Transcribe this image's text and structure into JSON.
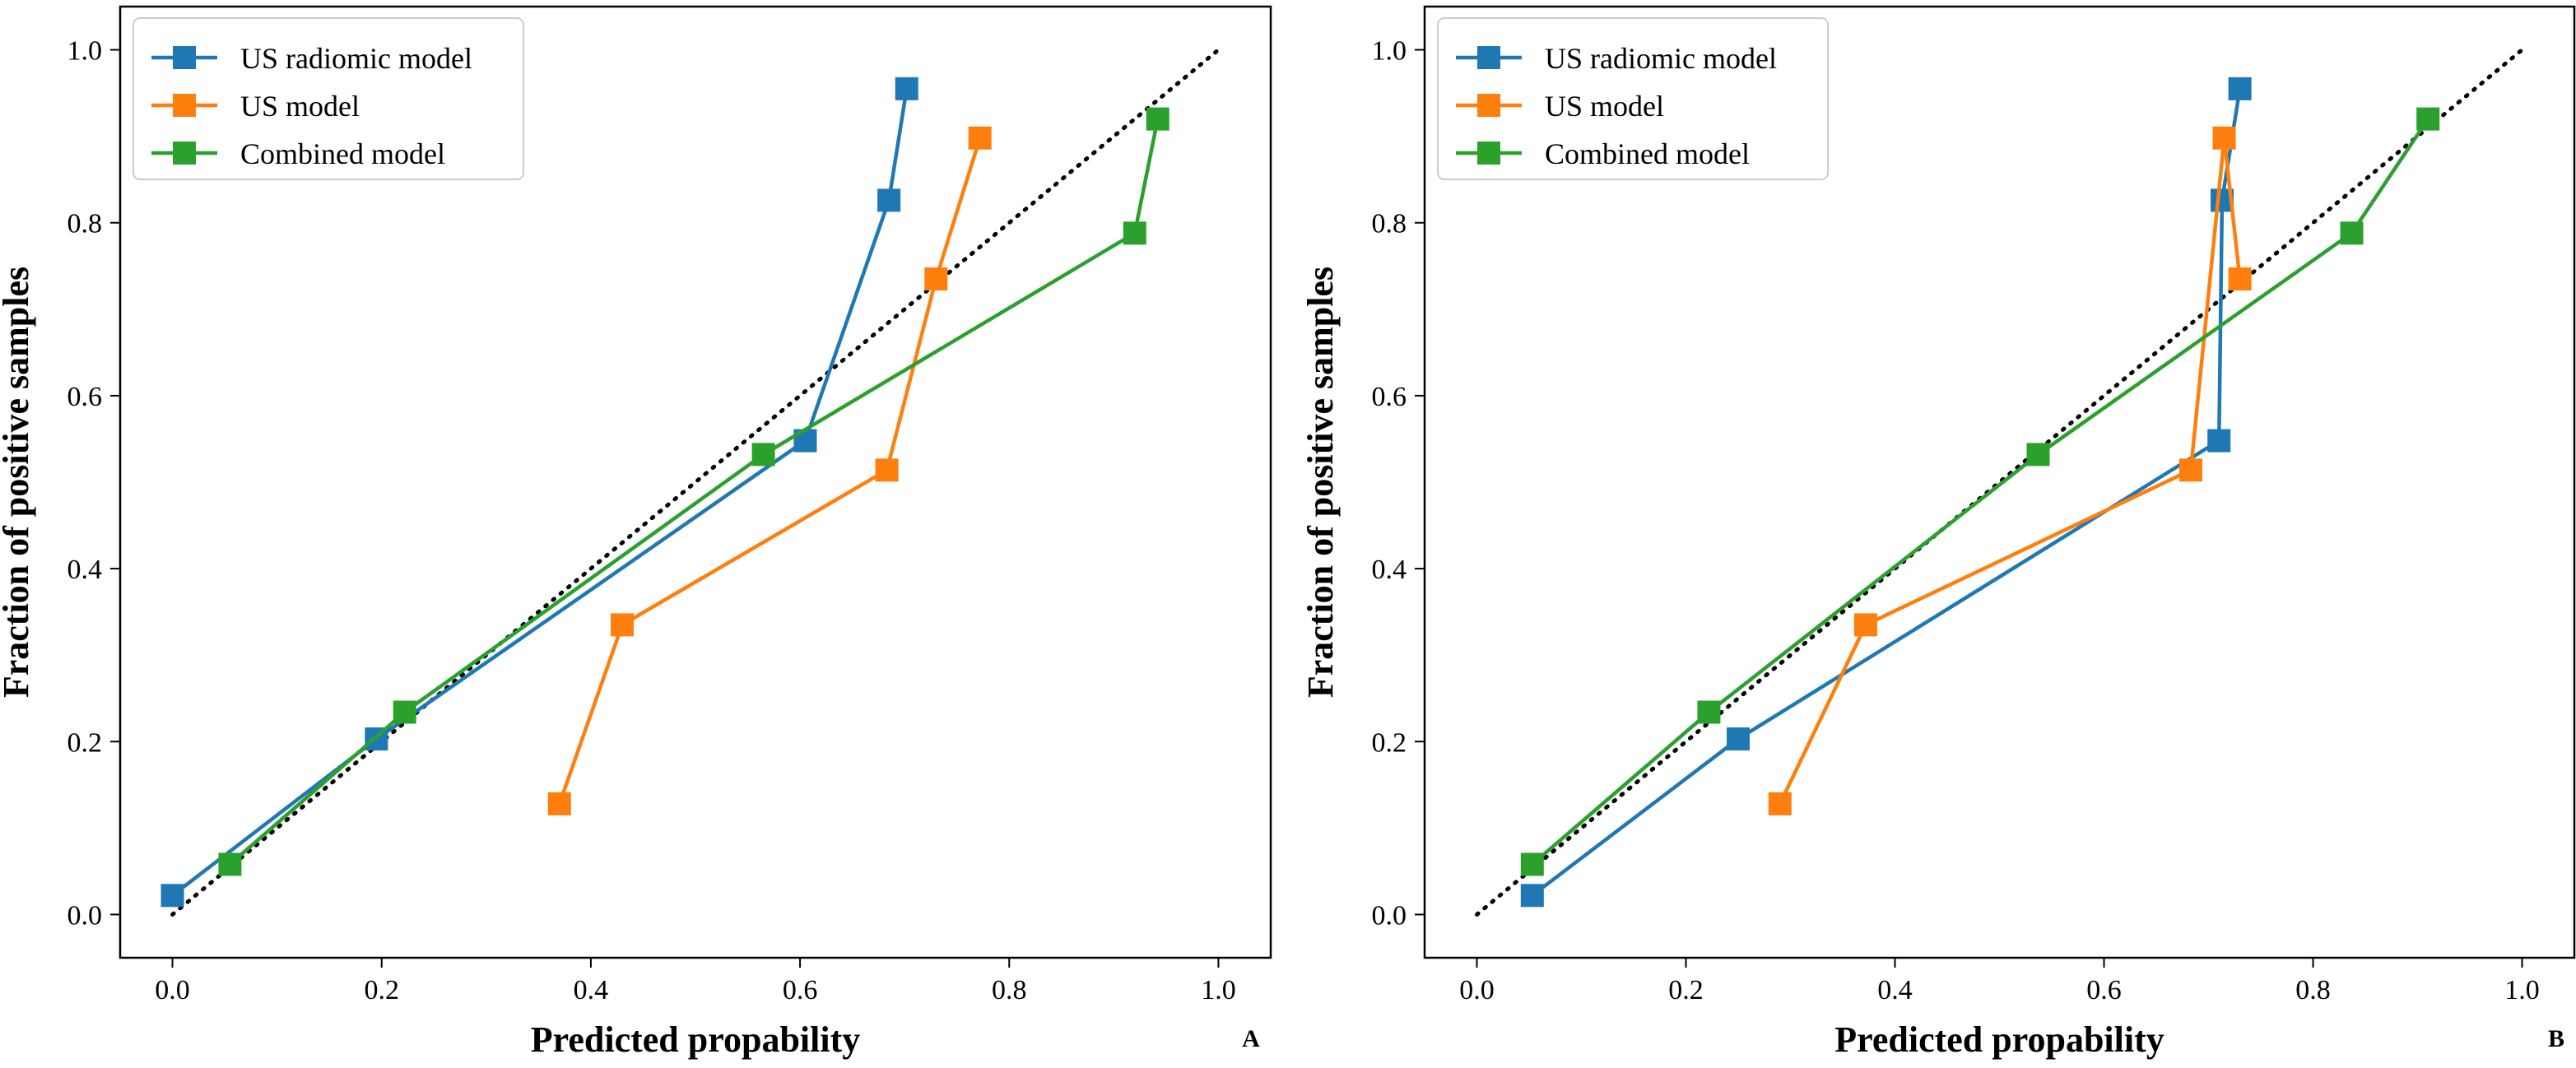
{
  "chart_data": [
    {
      "type": "line",
      "panel_label": "A",
      "xlabel": "Predicted propability",
      "ylabel": "Fraction of positive samples",
      "xlim": [
        -0.05,
        1.05
      ],
      "ylim": [
        -0.05,
        1.05
      ],
      "xticks": [
        "0.0",
        "0.2",
        "0.4",
        "0.6",
        "0.8",
        "1.0"
      ],
      "yticks": [
        "0.0",
        "0.2",
        "0.4",
        "0.6",
        "0.8",
        "1.0"
      ],
      "legend_position": "top-left",
      "reference_line": {
        "style": "dotted",
        "color": "#000000",
        "points": [
          [
            0,
            0
          ],
          [
            1,
            1
          ]
        ]
      },
      "series": [
        {
          "name": "US radiomic model",
          "color": "#1f77b4",
          "marker": "square",
          "x": [
            0.0,
            0.195,
            0.605,
            0.685,
            0.702
          ],
          "y": [
            0.022,
            0.203,
            0.548,
            0.826,
            0.955
          ]
        },
        {
          "name": "US model",
          "color": "#ff7f0e",
          "marker": "square",
          "x": [
            0.37,
            0.43,
            0.683,
            0.73,
            0.772
          ],
          "y": [
            0.128,
            0.335,
            0.514,
            0.735,
            0.898
          ]
        },
        {
          "name": "Combined model",
          "color": "#2ca02c",
          "marker": "square",
          "x": [
            0.055,
            0.222,
            0.565,
            0.92,
            0.942
          ],
          "y": [
            0.058,
            0.234,
            0.532,
            0.788,
            0.92
          ]
        }
      ]
    },
    {
      "type": "line",
      "panel_label": "B",
      "xlabel": "Predicted propability",
      "ylabel": "Fraction of positive samples",
      "xlim": [
        -0.05,
        1.05
      ],
      "ylim": [
        -0.05,
        1.05
      ],
      "xticks": [
        "0.0",
        "0.2",
        "0.4",
        "0.6",
        "0.8",
        "1.0"
      ],
      "yticks": [
        "0.0",
        "0.2",
        "0.4",
        "0.6",
        "0.8",
        "1.0"
      ],
      "legend_position": "top-left",
      "reference_line": {
        "style": "dotted",
        "color": "#000000",
        "points": [
          [
            0,
            0
          ],
          [
            1,
            1
          ]
        ]
      },
      "series": [
        {
          "name": "US radiomic model",
          "color": "#1f77b4",
          "marker": "square",
          "x": [
            0.053,
            0.25,
            0.71,
            0.713,
            0.73
          ],
          "y": [
            0.022,
            0.203,
            0.548,
            0.826,
            0.955
          ]
        },
        {
          "name": "US model",
          "color": "#ff7f0e",
          "marker": "square",
          "x": [
            0.29,
            0.372,
            0.683,
            0.715,
            0.73
          ],
          "y": [
            0.128,
            0.335,
            0.514,
            0.898,
            0.735
          ]
        },
        {
          "name": "Combined model",
          "color": "#2ca02c",
          "marker": "square",
          "x": [
            0.053,
            0.222,
            0.537,
            0.837,
            0.91
          ],
          "y": [
            0.058,
            0.234,
            0.532,
            0.788,
            0.92
          ]
        }
      ]
    }
  ]
}
